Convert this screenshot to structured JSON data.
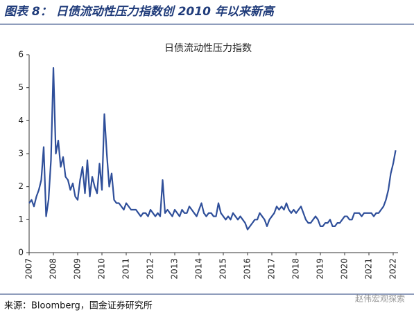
{
  "header": "图表 8： 日债流动性压力指数创 2010 年以来新高",
  "source": "来源：Bloomberg，国金证券研究所",
  "watermark": "赵伟宏观探索",
  "chart_data": {
    "type": "line",
    "title": "日债流动性压力指数",
    "x": [
      2007,
      2007.1,
      2007.2,
      2007.3,
      2007.4,
      2007.5,
      2007.6,
      2007.7,
      2007.8,
      2007.9,
      2008,
      2008.1,
      2008.2,
      2008.3,
      2008.4,
      2008.5,
      2008.6,
      2008.7,
      2008.8,
      2008.9,
      2009,
      2009.1,
      2009.2,
      2009.3,
      2009.4,
      2009.5,
      2009.6,
      2009.7,
      2009.8,
      2009.9,
      2010,
      2010.1,
      2010.2,
      2010.3,
      2010.4,
      2010.5,
      2010.6,
      2010.7,
      2010.8,
      2010.9,
      2011,
      2011.1,
      2011.2,
      2011.3,
      2011.4,
      2011.5,
      2011.6,
      2011.7,
      2011.8,
      2011.9,
      2012,
      2012.1,
      2012.2,
      2012.3,
      2012.4,
      2012.5,
      2012.6,
      2012.7,
      2012.8,
      2012.9,
      2013,
      2013.1,
      2013.2,
      2013.3,
      2013.4,
      2013.5,
      2013.6,
      2013.7,
      2013.8,
      2013.9,
      2014,
      2014.1,
      2014.2,
      2014.3,
      2014.4,
      2014.5,
      2014.6,
      2014.7,
      2014.8,
      2014.9,
      2015,
      2015.1,
      2015.2,
      2015.3,
      2015.4,
      2015.5,
      2015.6,
      2015.7,
      2015.8,
      2015.9,
      2016,
      2016.1,
      2016.2,
      2016.3,
      2016.4,
      2016.5,
      2016.6,
      2016.7,
      2016.8,
      2016.9,
      2017,
      2017.1,
      2017.2,
      2017.3,
      2017.4,
      2017.5,
      2017.6,
      2017.7,
      2017.8,
      2017.9,
      2018,
      2018.1,
      2018.2,
      2018.3,
      2018.4,
      2018.5,
      2018.6,
      2018.7,
      2018.8,
      2018.9,
      2019,
      2019.1,
      2019.2,
      2019.3,
      2019.4,
      2019.5,
      2019.6,
      2019.7,
      2019.8,
      2019.9,
      2020,
      2020.1,
      2020.2,
      2020.3,
      2020.4,
      2020.5,
      2020.6,
      2020.7,
      2020.8,
      2020.9,
      2021,
      2021.1,
      2021.2,
      2021.3,
      2021.4,
      2021.5,
      2021.6,
      2021.7,
      2021.8,
      2021.9,
      2022,
      2022.1
    ],
    "series": [
      {
        "name": "日债流动性压力指数",
        "color": "#2f4f9a",
        "values": [
          1.5,
          1.6,
          1.4,
          1.7,
          1.9,
          2.2,
          3.2,
          1.1,
          1.6,
          2.8,
          5.6,
          3.0,
          3.4,
          2.6,
          2.9,
          2.3,
          2.2,
          1.9,
          2.1,
          1.7,
          1.6,
          2.2,
          2.6,
          1.8,
          2.8,
          1.7,
          2.3,
          2.0,
          1.8,
          2.7,
          1.9,
          4.2,
          3.0,
          2.0,
          2.4,
          1.6,
          1.5,
          1.5,
          1.4,
          1.3,
          1.5,
          1.4,
          1.3,
          1.3,
          1.3,
          1.2,
          1.1,
          1.2,
          1.2,
          1.1,
          1.3,
          1.2,
          1.1,
          1.2,
          1.1,
          2.2,
          1.2,
          1.3,
          1.2,
          1.1,
          1.3,
          1.2,
          1.1,
          1.3,
          1.2,
          1.2,
          1.4,
          1.3,
          1.2,
          1.1,
          1.3,
          1.5,
          1.2,
          1.1,
          1.2,
          1.2,
          1.1,
          1.1,
          1.5,
          1.2,
          1.1,
          1.0,
          1.1,
          1.0,
          1.2,
          1.1,
          1.0,
          1.1,
          1.0,
          0.9,
          0.7,
          0.8,
          0.9,
          1.0,
          1.0,
          1.2,
          1.1,
          1.0,
          0.8,
          1.0,
          1.1,
          1.2,
          1.4,
          1.3,
          1.4,
          1.3,
          1.5,
          1.3,
          1.2,
          1.3,
          1.2,
          1.3,
          1.4,
          1.2,
          1.0,
          0.9,
          0.9,
          1.0,
          1.1,
          1.0,
          0.8,
          0.8,
          0.9,
          0.9,
          1.0,
          0.8,
          0.8,
          0.9,
          0.9,
          1.0,
          1.1,
          1.1,
          1.0,
          1.0,
          1.2,
          1.2,
          1.2,
          1.1,
          1.2,
          1.2,
          1.2,
          1.2,
          1.1,
          1.2,
          1.2,
          1.3,
          1.4,
          1.6,
          1.9,
          2.4,
          2.7,
          3.1
        ]
      }
    ],
    "xlim": [
      2007,
      2022.2
    ],
    "xticks": [
      2007,
      2008,
      2009,
      2010,
      2011,
      2012,
      2013,
      2014,
      2015,
      2016,
      2017,
      2018,
      2019,
      2020,
      2021,
      2022
    ],
    "ylim": [
      0,
      6
    ],
    "yticks": [
      0,
      1,
      2,
      3,
      4,
      5,
      6
    ]
  }
}
